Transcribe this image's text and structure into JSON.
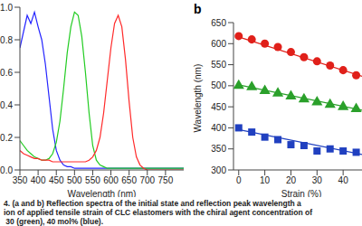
{
  "chart_data": [
    {
      "type": "line",
      "x_label": "Wavelength (nm)",
      "x": [
        350,
        360,
        370,
        380,
        390,
        400,
        410,
        420,
        430,
        440,
        450,
        460,
        470,
        480,
        490,
        500,
        510,
        520,
        530,
        540,
        550,
        560,
        570,
        580,
        590,
        600,
        610,
        620,
        630,
        640,
        650,
        660,
        670,
        680,
        690,
        700,
        710,
        720,
        730,
        740,
        750,
        760,
        770,
        780,
        790,
        800
      ],
      "series": [
        {
          "color": "#2424ff",
          "values": [
            0.75,
            0.85,
            0.95,
            0.9,
            0.97,
            0.88,
            0.8,
            0.65,
            0.45,
            0.25,
            0.12,
            0.06,
            0.03,
            0.02,
            0.02,
            0.01,
            0.01,
            0.01,
            0.01,
            0.01,
            0.01,
            0.01,
            0.01,
            0.01,
            0.01,
            0.01,
            0.01,
            0.01,
            0.01,
            0.01,
            0.01,
            0.01,
            0.01,
            0.01,
            0.01,
            0.01,
            0.01,
            0.01,
            0.01,
            0.01,
            0.01,
            0.01,
            0.01,
            0.01,
            0.01,
            0.01
          ]
        },
        {
          "color": "#22cc22",
          "values": [
            0.18,
            0.15,
            0.12,
            0.1,
            0.08,
            0.07,
            0.06,
            0.06,
            0.07,
            0.1,
            0.17,
            0.3,
            0.5,
            0.72,
            0.88,
            0.97,
            0.95,
            0.82,
            0.6,
            0.35,
            0.15,
            0.06,
            0.03,
            0.02,
            0.01,
            0.01,
            0.01,
            0.01,
            0.01,
            0.01,
            0.01,
            0.01,
            0.01,
            0.01,
            0.01,
            0.01,
            0.01,
            0.01,
            0.01,
            0.01,
            0.01,
            0.01,
            0.01,
            0.01,
            0.01,
            0.01
          ]
        },
        {
          "color": "#ff2a2a",
          "values": [
            0.12,
            0.1,
            0.09,
            0.08,
            0.07,
            0.07,
            0.06,
            0.06,
            0.06,
            0.05,
            0.05,
            0.05,
            0.05,
            0.05,
            0.05,
            0.05,
            0.05,
            0.05,
            0.05,
            0.06,
            0.08,
            0.12,
            0.2,
            0.35,
            0.55,
            0.75,
            0.9,
            0.95,
            0.88,
            0.68,
            0.42,
            0.2,
            0.08,
            0.03,
            0.01,
            0.0,
            0.0,
            0.0,
            0.0,
            0.0,
            0.0,
            0.0,
            0.0,
            0.0,
            0.0,
            0.0
          ]
        }
      ],
      "xlim": [
        350,
        800
      ],
      "xticks": [
        350,
        400,
        450,
        500,
        550,
        600,
        650,
        700,
        750
      ],
      "ylim": [
        0,
        1
      ],
      "yticks": [
        {
          "value": 0,
          "label": "0.0"
        },
        0.2,
        0.4,
        0.6,
        0.8,
        {
          "value": 1,
          "label": "1.0"
        }
      ]
    },
    {
      "type": "scatter",
      "title": "b",
      "x_label": "Strain (%)",
      "y_label": "Wavelength (nm)",
      "series": [
        {
          "color": "#e0201a",
          "marker": "circle",
          "x": [
            0,
            5,
            10,
            15,
            20,
            25,
            30,
            35,
            40,
            45
          ],
          "values": [
            618,
            610,
            600,
            592,
            580,
            568,
            558,
            548,
            537,
            525
          ],
          "fit": {
            "x": [
              0,
              48
            ],
            "values": [
              616,
              521
            ]
          }
        },
        {
          "color": "#2aa02a",
          "marker": "triangle",
          "x": [
            0,
            5,
            10,
            15,
            20,
            25,
            30,
            35,
            40,
            45
          ],
          "values": [
            500,
            497,
            488,
            482,
            475,
            468,
            461,
            455,
            450,
            445
          ],
          "fit": {
            "x": [
              0,
              48
            ],
            "values": [
              502,
              441
            ]
          }
        },
        {
          "color": "#2040c0",
          "marker": "square",
          "x": [
            0,
            5,
            10,
            15,
            20,
            25,
            30,
            35,
            40,
            45
          ],
          "values": [
            400,
            390,
            378,
            372,
            360,
            358,
            345,
            350,
            345,
            342
          ],
          "fit": {
            "x": [
              0,
              48
            ],
            "values": [
              396,
              336
            ]
          }
        }
      ],
      "xlim": [
        -2,
        50
      ],
      "xticks": [
        0,
        10,
        20,
        30,
        40
      ],
      "ylim": [
        300,
        650
      ],
      "yticks": [
        300,
        350,
        400,
        450,
        500,
        550,
        600,
        650
      ]
    }
  ],
  "caption": [
    "4. (a and b) Reflection spectra of the initial state and reflection peak wavelength a",
    "ion of applied tensile strain of CLC elastomers with the chiral agent concentration of",
    " 30 (green), 40 mol% (blue)."
  ]
}
